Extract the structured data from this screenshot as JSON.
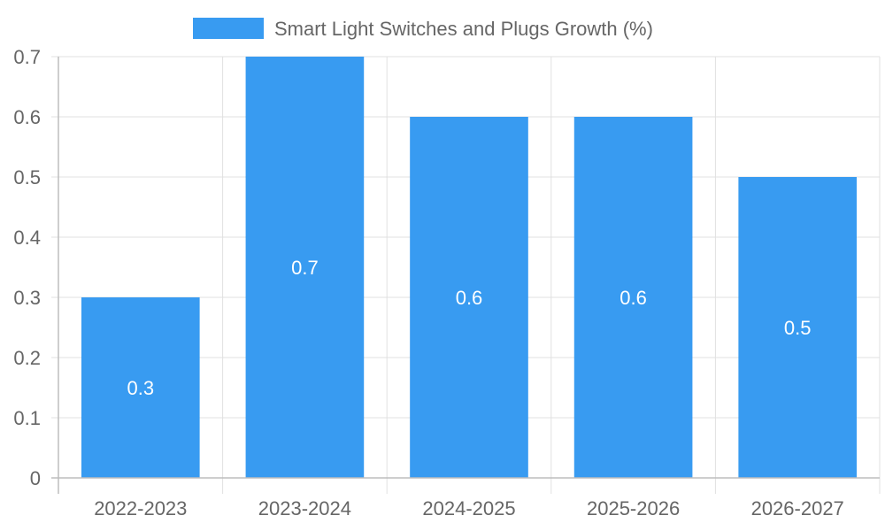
{
  "chart_data": {
    "type": "bar",
    "categories": [
      "2022-2023",
      "2023-2024",
      "2024-2025",
      "2025-2026",
      "2026-2027"
    ],
    "series": [
      {
        "name": "Smart Light Switches and Plugs Growth (%)",
        "values": [
          0.3,
          0.7,
          0.6,
          0.6,
          0.5
        ],
        "color": "#389BF1"
      }
    ],
    "title": "",
    "xlabel": "",
    "ylabel": "",
    "ylim": [
      0,
      0.7
    ],
    "yticks": [
      "0",
      "0.1",
      "0.2",
      "0.3",
      "0.4",
      "0.5",
      "0.6",
      "0.7"
    ],
    "data_labels": [
      "0.3",
      "0.7",
      "0.6",
      "0.6",
      "0.5"
    ],
    "grid": true,
    "legend_position": "top-center",
    "grid_color": "#E0E0E0",
    "axis_color": "#BDBDBD",
    "text_color": "#666666"
  }
}
